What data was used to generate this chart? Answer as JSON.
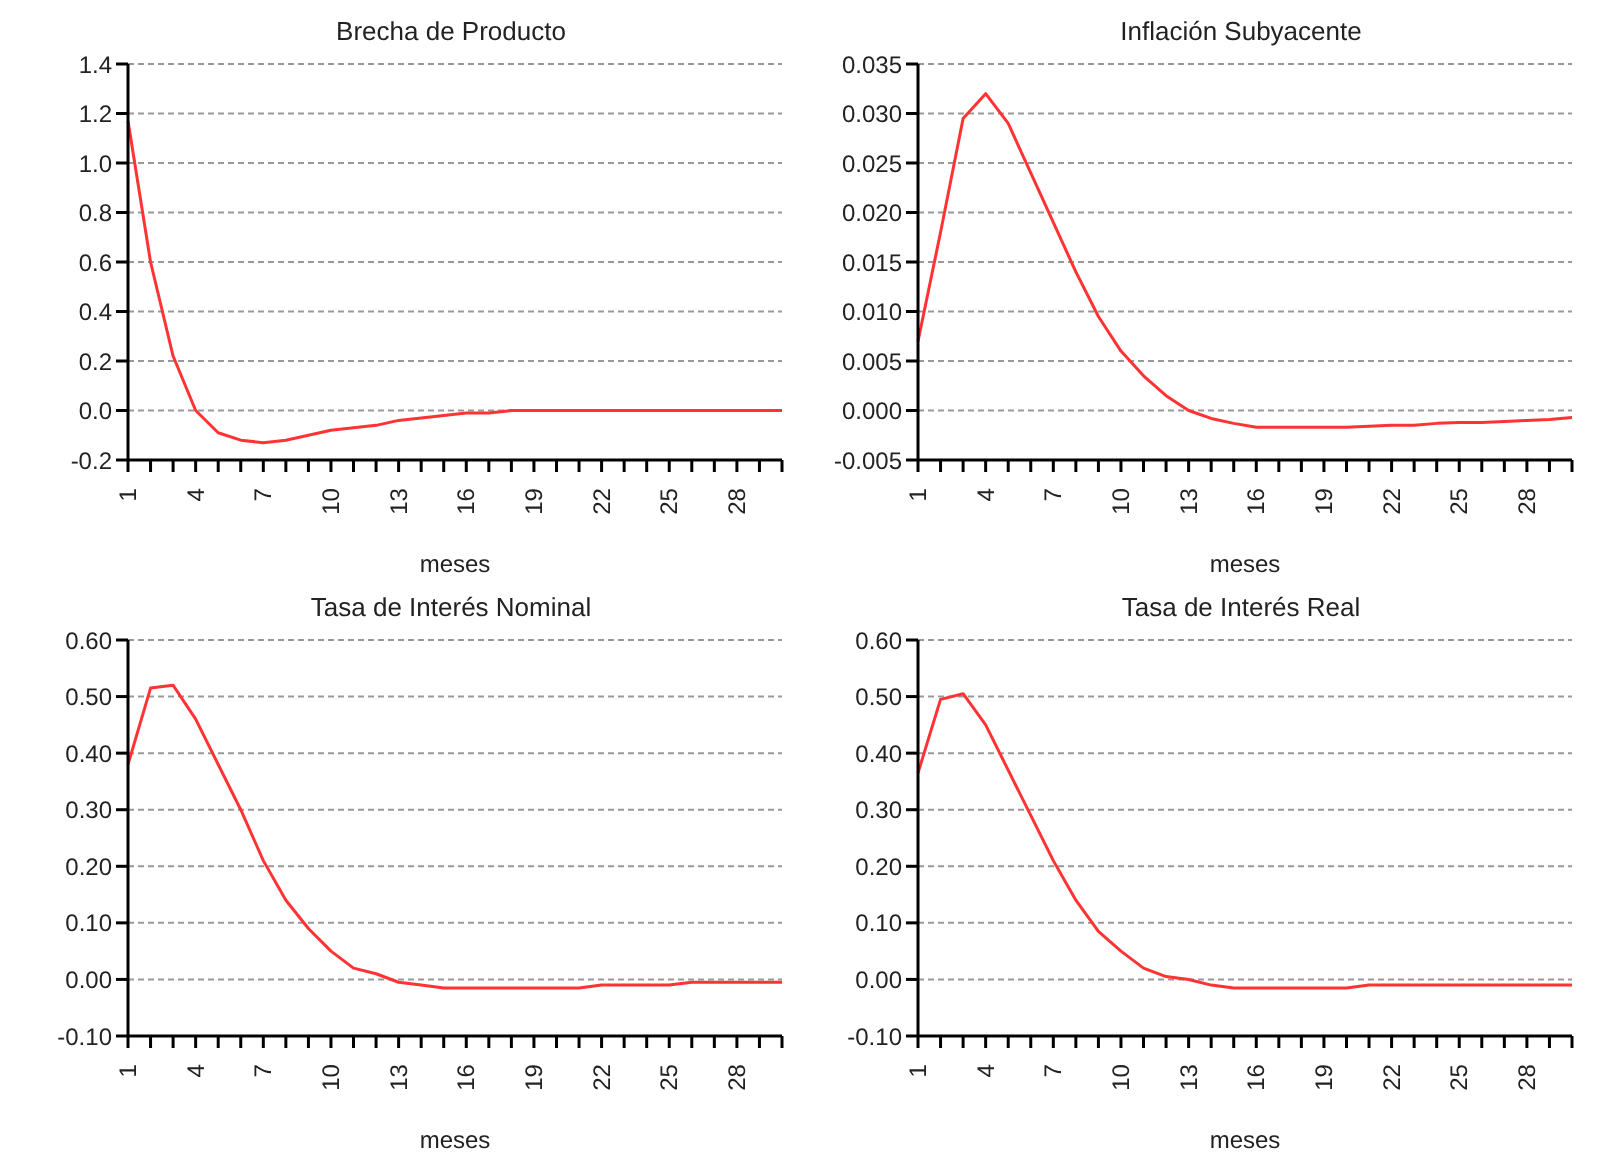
{
  "chart_data": [
    {
      "type": "line",
      "title": "Brecha de Producto",
      "xlabel": "meses",
      "categories": [
        "1",
        null,
        null,
        "4",
        null,
        null,
        "7",
        null,
        null,
        "10",
        null,
        null,
        "13",
        null,
        null,
        "16",
        null,
        null,
        "19",
        null,
        null,
        "22",
        null,
        null,
        "25",
        null,
        null,
        "28",
        null,
        null
      ],
      "series": [
        {
          "color": "#ff3333",
          "values": [
            1.17,
            0.6,
            0.22,
            0.0,
            -0.09,
            -0.12,
            -0.13,
            -0.12,
            -0.1,
            -0.08,
            -0.07,
            -0.06,
            -0.04,
            -0.03,
            -0.02,
            -0.01,
            -0.01,
            0,
            0,
            0,
            0,
            0,
            0,
            0,
            0,
            0,
            0,
            0,
            0,
            0
          ]
        }
      ],
      "ylim": [
        -0.2,
        1.4
      ],
      "yticks": [
        {
          "value": -0.2,
          "label": "-0.2"
        },
        {
          "value": 0,
          "label": "0.0"
        },
        {
          "value": 0.2,
          "label": "0.2"
        },
        {
          "value": 0.4,
          "label": "0.4"
        },
        {
          "value": 0.6,
          "label": "0.6"
        },
        {
          "value": 0.8,
          "label": "0.8"
        },
        {
          "value": 1,
          "label": "1.0"
        },
        {
          "value": 1.2,
          "label": "1.2"
        },
        {
          "value": 1.4,
          "label": "1.4"
        }
      ],
      "grid": "y",
      "legend": false,
      "marker": "none",
      "line_style": "solid"
    },
    {
      "type": "line",
      "title": "Inflación Subyacente",
      "xlabel": "meses",
      "categories": [
        "1",
        null,
        null,
        "4",
        null,
        null,
        "7",
        null,
        null,
        "10",
        null,
        null,
        "13",
        null,
        null,
        "16",
        null,
        null,
        "19",
        null,
        null,
        "22",
        null,
        null,
        "25",
        null,
        null,
        "28",
        null,
        null
      ],
      "series": [
        {
          "color": "#ff3333",
          "values": [
            0.007,
            0.018,
            0.0295,
            0.032,
            0.029,
            0.024,
            0.019,
            0.014,
            0.0095,
            0.006,
            0.0035,
            0.0015,
            0.0,
            -0.0008,
            -0.0013,
            -0.0017,
            -0.0017,
            -0.0017,
            -0.0017,
            -0.0017,
            -0.0016,
            -0.0015,
            -0.0015,
            -0.0013,
            -0.0012,
            -0.0012,
            -0.0011,
            -0.001,
            -0.0009,
            -0.0007
          ]
        }
      ],
      "ylim": [
        -0.005,
        0.035
      ],
      "yticks": [
        {
          "value": -0.005,
          "label": "-0.005"
        },
        {
          "value": 0,
          "label": "0.000"
        },
        {
          "value": 0.005,
          "label": "0.005"
        },
        {
          "value": 0.01,
          "label": "0.010"
        },
        {
          "value": 0.015,
          "label": "0.015"
        },
        {
          "value": 0.02,
          "label": "0.020"
        },
        {
          "value": 0.025,
          "label": "0.025"
        },
        {
          "value": 0.03,
          "label": "0.030"
        },
        {
          "value": 0.035,
          "label": "0.035"
        }
      ],
      "grid": "y",
      "legend": false,
      "marker": "none",
      "line_style": "solid"
    },
    {
      "type": "line",
      "title": "Tasa de Interés Nominal",
      "xlabel": "meses",
      "categories": [
        "1",
        null,
        null,
        "4",
        null,
        null,
        "7",
        null,
        null,
        "10",
        null,
        null,
        "13",
        null,
        null,
        "16",
        null,
        null,
        "19",
        null,
        null,
        "22",
        null,
        null,
        "25",
        null,
        null,
        "28",
        null,
        null
      ],
      "series": [
        {
          "color": "#ff3333",
          "values": [
            0.38,
            0.515,
            0.52,
            0.46,
            0.38,
            0.3,
            0.21,
            0.14,
            0.09,
            0.05,
            0.02,
            0.01,
            -0.005,
            -0.01,
            -0.015,
            -0.015,
            -0.015,
            -0.015,
            -0.015,
            -0.015,
            -0.015,
            -0.01,
            -0.01,
            -0.01,
            -0.01,
            -0.005,
            -0.005,
            -0.005,
            -0.005,
            -0.005
          ]
        }
      ],
      "ylim": [
        -0.1,
        0.6
      ],
      "yticks": [
        {
          "value": -0.1,
          "label": "-0.10"
        },
        {
          "value": 0,
          "label": "0.00"
        },
        {
          "value": 0.1,
          "label": "0.10"
        },
        {
          "value": 0.2,
          "label": "0.20"
        },
        {
          "value": 0.3,
          "label": "0.30"
        },
        {
          "value": 0.4,
          "label": "0.40"
        },
        {
          "value": 0.5,
          "label": "0.50"
        },
        {
          "value": 0.6,
          "label": "0.60"
        }
      ],
      "grid": "y",
      "legend": false,
      "marker": "none",
      "line_style": "solid"
    },
    {
      "type": "line",
      "title": "Tasa de Interés Real",
      "xlabel": "meses",
      "categories": [
        "1",
        null,
        null,
        "4",
        null,
        null,
        "7",
        null,
        null,
        "10",
        null,
        null,
        "13",
        null,
        null,
        "16",
        null,
        null,
        "19",
        null,
        null,
        "22",
        null,
        null,
        "25",
        null,
        null,
        "28",
        null,
        null
      ],
      "series": [
        {
          "color": "#ff3333",
          "values": [
            0.365,
            0.495,
            0.505,
            0.45,
            0.37,
            0.29,
            0.21,
            0.14,
            0.085,
            0.05,
            0.02,
            0.005,
            0.0,
            -0.01,
            -0.015,
            -0.015,
            -0.015,
            -0.015,
            -0.015,
            -0.015,
            -0.01,
            -0.01,
            -0.01,
            -0.01,
            -0.01,
            -0.01,
            -0.01,
            -0.01,
            -0.01,
            -0.01
          ]
        }
      ],
      "ylim": [
        -0.1,
        0.6
      ],
      "yticks": [
        {
          "value": -0.1,
          "label": "-0.10"
        },
        {
          "value": 0,
          "label": "0.00"
        },
        {
          "value": 0.1,
          "label": "0.10"
        },
        {
          "value": 0.2,
          "label": "0.20"
        },
        {
          "value": 0.3,
          "label": "0.30"
        },
        {
          "value": 0.4,
          "label": "0.40"
        },
        {
          "value": 0.5,
          "label": "0.50"
        },
        {
          "value": 0.6,
          "label": "0.60"
        }
      ],
      "grid": "y",
      "legend": false,
      "marker": "none",
      "line_style": "solid"
    }
  ]
}
